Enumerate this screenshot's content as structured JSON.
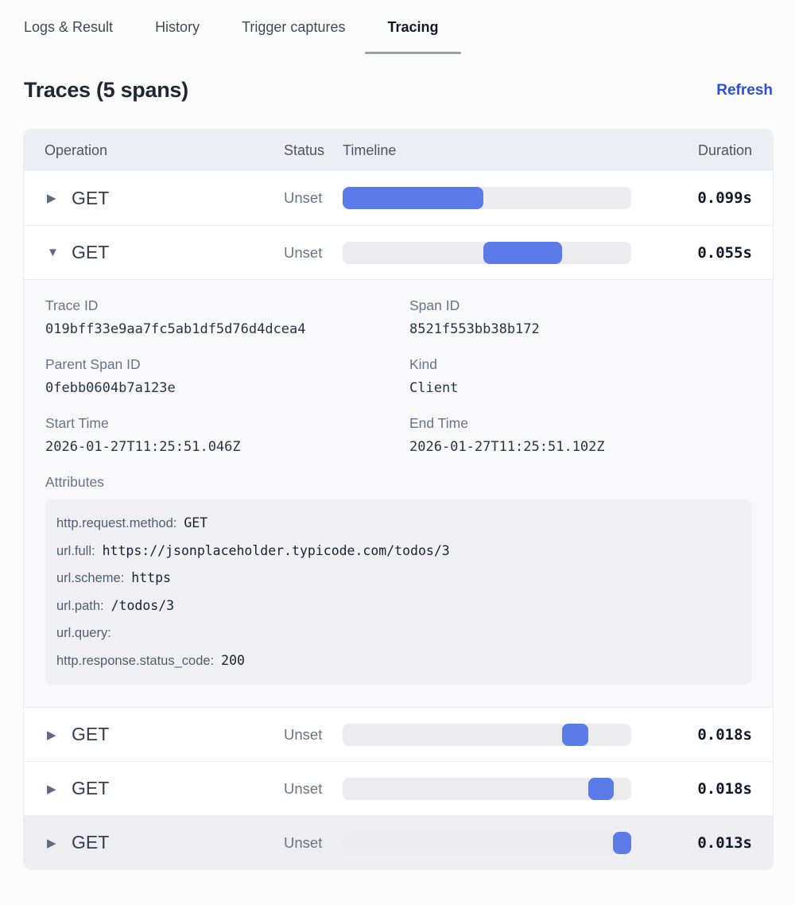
{
  "tabs": [
    {
      "label": "Logs & Result",
      "active": false
    },
    {
      "label": "History",
      "active": false
    },
    {
      "label": "Trigger captures",
      "active": false
    },
    {
      "label": "Tracing",
      "active": true
    }
  ],
  "header": {
    "title": "Traces (5 spans)",
    "refresh_label": "Refresh"
  },
  "colors": {
    "accent_bar": "#5b7ce8",
    "refresh_link": "#2b4ed8",
    "table_header_bg": "#eceef3",
    "highlight_row_bg": "#ededf2"
  },
  "table": {
    "columns": {
      "operation": "Operation",
      "status": "Status",
      "timeline": "Timeline",
      "duration": "Duration"
    },
    "rows": [
      {
        "caret": "▶",
        "operation": "GET",
        "status": "Unset",
        "duration": "0.099s",
        "bar": {
          "left": "0%",
          "width": "48.8%"
        },
        "expanded": false
      },
      {
        "caret": "▼",
        "operation": "GET",
        "status": "Unset",
        "duration": "0.055s",
        "bar": {
          "left": "48.8%",
          "width": "27.2%"
        },
        "expanded": true
      },
      {
        "caret": "▶",
        "operation": "GET",
        "status": "Unset",
        "duration": "0.018s",
        "bar": {
          "left": "76.1%",
          "width": "9.0%"
        },
        "expanded": false
      },
      {
        "caret": "▶",
        "operation": "GET",
        "status": "Unset",
        "duration": "0.018s",
        "bar": {
          "left": "85.0%",
          "width": "8.9%"
        },
        "expanded": false
      },
      {
        "caret": "▶",
        "operation": "GET",
        "status": "Unset",
        "duration": "0.013s",
        "bar": {
          "left": "93.6%",
          "width": "6.4%"
        },
        "expanded": false,
        "highlighted": true
      }
    ]
  },
  "detail": {
    "fields": [
      {
        "label": "Trace ID",
        "value": "019bff33e9aa7fc5ab1df5d76d4dcea4"
      },
      {
        "label": "Span ID",
        "value": "8521f553bb38b172"
      },
      {
        "label": "Parent Span ID",
        "value": "0febb0604b7a123e"
      },
      {
        "label": "Kind",
        "value": "Client"
      },
      {
        "label": "Start Time",
        "value": "2026-01-27T11:25:51.046Z"
      },
      {
        "label": "End Time",
        "value": "2026-01-27T11:25:51.102Z"
      }
    ],
    "attributes_label": "Attributes",
    "attributes": [
      {
        "key": "http.request.method:",
        "value": "GET"
      },
      {
        "key": "url.full:",
        "value": "https://jsonplaceholder.typicode.com/todos/3"
      },
      {
        "key": "url.scheme:",
        "value": "https"
      },
      {
        "key": "url.path:",
        "value": "/todos/3"
      },
      {
        "key": "url.query:",
        "value": ""
      },
      {
        "key": "http.response.status_code:",
        "value": "200"
      }
    ]
  }
}
